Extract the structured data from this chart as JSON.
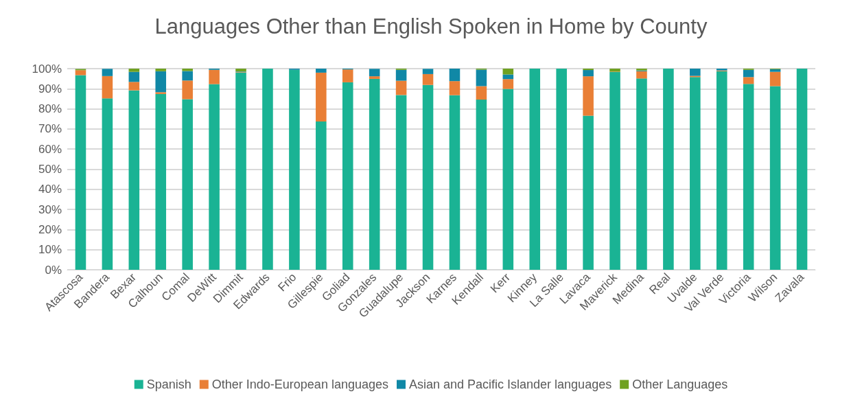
{
  "chart_data": {
    "type": "bar",
    "stacked": true,
    "title": "Languages Other than English Spoken in Home by County",
    "categories": [
      "Atascosa",
      "Bandera",
      "Bexar",
      "Calhoun",
      "Comal",
      "DeWitt",
      "Dimmit",
      "Edwards",
      "Frio",
      "Gillespie",
      "Goliad",
      "Gonzales",
      "Guadalupe",
      "Jackson",
      "Karnes",
      "Kendall",
      "Kerr",
      "Kinney",
      "La Salle",
      "Lavaca",
      "Maverick",
      "Medina",
      "Real",
      "Uvalde",
      "Val Verde",
      "Victoria",
      "Wilson",
      "Zavala"
    ],
    "series": [
      {
        "name": "Spanish",
        "color": "#1ab394",
        "values": [
          96.8,
          85.2,
          89.2,
          87.4,
          84.8,
          92.3,
          98.1,
          100,
          99.4,
          73.7,
          93.2,
          94.9,
          86.9,
          91.9,
          86.8,
          84.6,
          89.9,
          100,
          100,
          76.6,
          98.3,
          95.1,
          100,
          95.8,
          98.7,
          92.4,
          91.3,
          100
        ]
      },
      {
        "name": "Other Indo-European languages",
        "color": "#e97f36",
        "values": [
          2.4,
          11.1,
          4.2,
          0.9,
          9.3,
          7.1,
          0.3,
          0,
          0,
          24.3,
          6.4,
          1.3,
          7.1,
          5.4,
          7,
          6.7,
          4.9,
          0,
          0,
          19.6,
          0.2,
          3.6,
          0,
          0.6,
          0.4,
          3.4,
          7.1,
          0
        ]
      },
      {
        "name": "Asian and Pacific Islander languages",
        "color": "#1088a6",
        "values": [
          null,
          3.6,
          5,
          10.4,
          4.7,
          0.6,
          0.2,
          0,
          0.6,
          2,
          0.4,
          3.7,
          5.4,
          2.6,
          6.2,
          8.2,
          2.3,
          0,
          0,
          3.1,
          0,
          0.4,
          0,
          3.6,
          0.9,
          3.6,
          1.3,
          0
        ]
      },
      {
        "name": "Other Languages",
        "color": "#6fa121",
        "values": [
          0.6,
          null,
          1.6,
          1.3,
          1.2,
          0,
          1.4,
          0,
          0,
          0,
          0,
          null,
          0.6,
          null,
          0,
          0.5,
          2.9,
          0,
          0,
          0.7,
          1.5,
          0.9,
          0,
          0,
          0,
          0.6,
          0.3,
          0
        ]
      }
    ],
    "ylim": [
      0,
      100
    ],
    "yticks": [
      {
        "value": 0,
        "label": "0%"
      },
      {
        "value": 10,
        "label": "10%"
      },
      {
        "value": 20,
        "label": "20%"
      },
      {
        "value": 30,
        "label": "30%"
      },
      {
        "value": 40,
        "label": "40%"
      },
      {
        "value": 50,
        "label": "50%"
      },
      {
        "value": 60,
        "label": "60%"
      },
      {
        "value": 70,
        "label": "70%"
      },
      {
        "value": 80,
        "label": "80%"
      },
      {
        "value": 90,
        "label": "90%"
      },
      {
        "value": 100,
        "label": "100%"
      }
    ],
    "grid": "y",
    "legend": "bottom"
  }
}
